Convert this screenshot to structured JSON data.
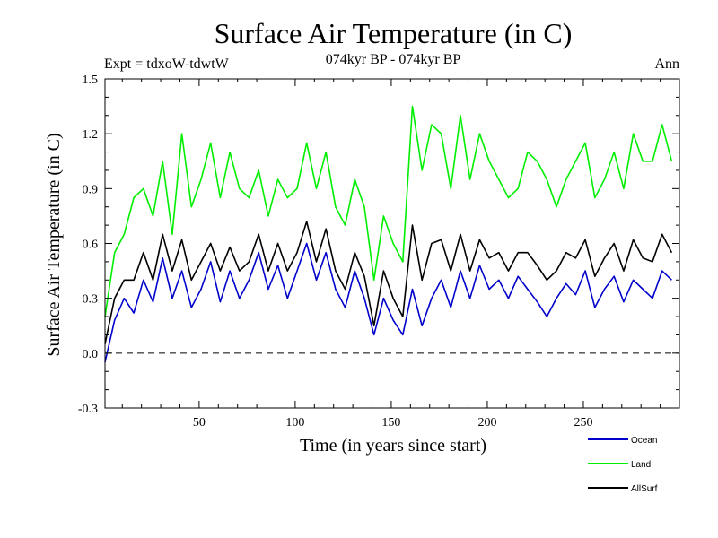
{
  "chart_data": {
    "type": "line",
    "title": "Surface Air Temperature (in C)",
    "subtitle": "074kyr BP - 074kyr BP",
    "experiment_label": "Expt = tdxoW-tdwtW",
    "season_label": "Ann",
    "xlabel": "Time (in years since start)",
    "ylabel": "Surface Air Temperature (in C)",
    "xlim": [
      1,
      300
    ],
    "ylim": [
      -0.3,
      1.5
    ],
    "x_ticks": [
      50,
      100,
      150,
      200,
      250
    ],
    "x_tick_labels": [
      "50",
      "100",
      "150",
      "200",
      "250"
    ],
    "y_ticks": [
      -0.3,
      0.0,
      0.3,
      0.6,
      0.9,
      1.2,
      1.5
    ],
    "y_tick_labels": [
      "-0.3",
      "0.0",
      "0.3",
      "0.6",
      "0.9",
      "1.2",
      "1.5"
    ],
    "zero_line": 0.0,
    "grid": false,
    "legend_position": "bottom-right",
    "x_step": 5,
    "x_start": 1,
    "series": [
      {
        "name": "Ocean",
        "color": "#0000cc",
        "values": [
          -0.05,
          0.18,
          0.3,
          0.22,
          0.4,
          0.28,
          0.52,
          0.3,
          0.45,
          0.25,
          0.35,
          0.5,
          0.28,
          0.45,
          0.3,
          0.4,
          0.55,
          0.35,
          0.48,
          0.3,
          0.45,
          0.6,
          0.4,
          0.55,
          0.35,
          0.25,
          0.45,
          0.3,
          0.1,
          0.3,
          0.18,
          0.1,
          0.35,
          0.15,
          0.3,
          0.4,
          0.25,
          0.45,
          0.3,
          0.48,
          0.35,
          0.4,
          0.3,
          0.42,
          0.35,
          0.28,
          0.2,
          0.3,
          0.38,
          0.32,
          0.45,
          0.25,
          0.35,
          0.42,
          0.28,
          0.4,
          0.35,
          0.3,
          0.45,
          0.4
        ]
      },
      {
        "name": "Land",
        "color": "#00ee00",
        "values": [
          0.2,
          0.55,
          0.65,
          0.85,
          0.9,
          0.75,
          1.05,
          0.65,
          1.2,
          0.8,
          0.95,
          1.15,
          0.85,
          1.1,
          0.9,
          0.85,
          1.0,
          0.75,
          0.95,
          0.85,
          0.9,
          1.15,
          0.9,
          1.1,
          0.8,
          0.7,
          0.95,
          0.8,
          0.4,
          0.75,
          0.6,
          0.5,
          1.35,
          1.0,
          1.25,
          1.2,
          0.9,
          1.3,
          0.95,
          1.2,
          1.05,
          0.95,
          0.85,
          0.9,
          1.1,
          1.05,
          0.95,
          0.8,
          0.95,
          1.05,
          1.15,
          0.85,
          0.95,
          1.1,
          0.9,
          1.2,
          1.05,
          1.05,
          1.25,
          1.05
        ]
      },
      {
        "name": "AllSurf",
        "color": "#000000",
        "values": [
          0.05,
          0.3,
          0.4,
          0.4,
          0.55,
          0.4,
          0.65,
          0.45,
          0.62,
          0.4,
          0.5,
          0.6,
          0.45,
          0.58,
          0.45,
          0.5,
          0.65,
          0.45,
          0.6,
          0.45,
          0.55,
          0.72,
          0.5,
          0.68,
          0.45,
          0.35,
          0.55,
          0.42,
          0.15,
          0.45,
          0.3,
          0.2,
          0.7,
          0.4,
          0.6,
          0.62,
          0.45,
          0.65,
          0.45,
          0.62,
          0.52,
          0.55,
          0.45,
          0.55,
          0.55,
          0.48,
          0.4,
          0.45,
          0.55,
          0.52,
          0.62,
          0.42,
          0.52,
          0.6,
          0.45,
          0.62,
          0.52,
          0.5,
          0.65,
          0.55
        ]
      }
    ]
  }
}
